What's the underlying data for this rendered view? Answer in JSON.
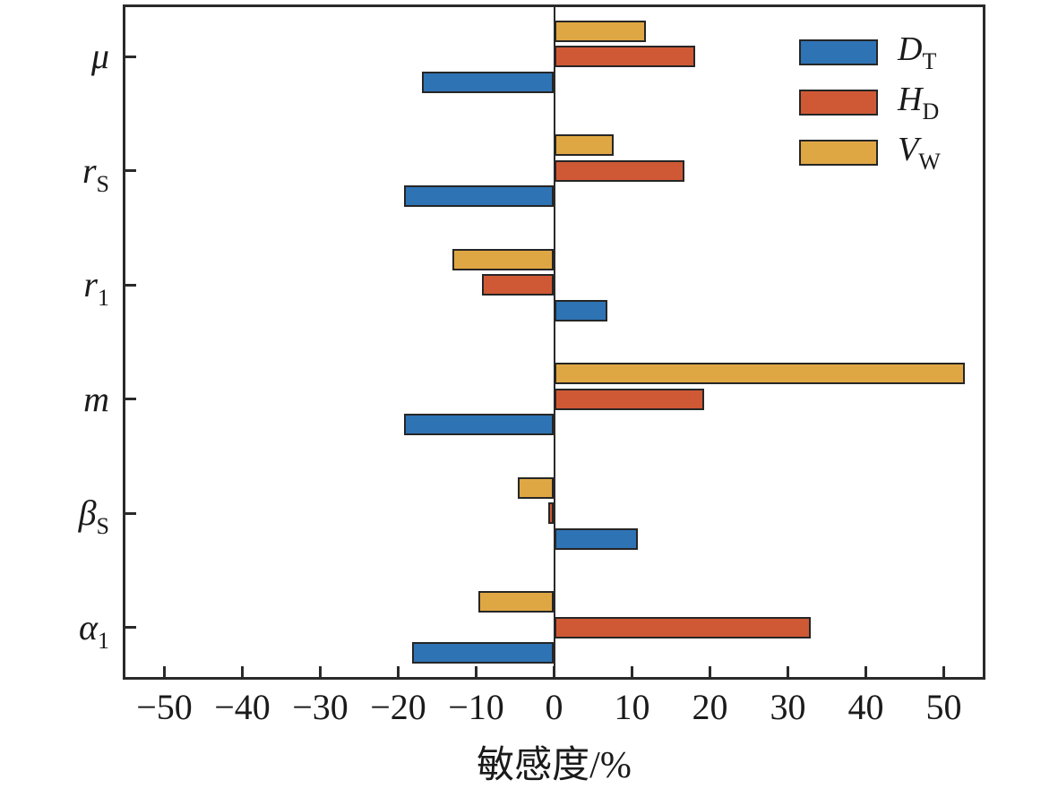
{
  "chart_data": {
    "type": "bar",
    "orientation": "horizontal",
    "title": "",
    "xlabel": "敏感度/%",
    "ylabel": "",
    "xlim": [
      -55,
      55
    ],
    "grid": false,
    "legend_position": "top-right-inside",
    "axis_color": "#2a2a2a",
    "bar_border_color": "#262626",
    "x_ticks": [
      {
        "value": -50,
        "label": "−50"
      },
      {
        "value": -40,
        "label": "−40"
      },
      {
        "value": -30,
        "label": "−30"
      },
      {
        "value": -20,
        "label": "−20"
      },
      {
        "value": -10,
        "label": "−10"
      },
      {
        "value": 0,
        "label": "0"
      },
      {
        "value": 10,
        "label": "10"
      },
      {
        "value": 20,
        "label": "20"
      },
      {
        "value": 30,
        "label": "30"
      },
      {
        "value": 40,
        "label": "40"
      },
      {
        "value": 50,
        "label": "50"
      }
    ],
    "categories": [
      {
        "main": "μ",
        "sub": ""
      },
      {
        "main": "r",
        "sub": "S"
      },
      {
        "main": "r",
        "sub": "1"
      },
      {
        "main": "m",
        "sub": ""
      },
      {
        "main": "β",
        "sub": "S"
      },
      {
        "main": "α",
        "sub": "1"
      }
    ],
    "bar_order_top_to_bottom": [
      "V_W",
      "H_D",
      "D_T"
    ],
    "series": [
      {
        "id": "D_T",
        "name_main": "D",
        "name_sub": "T",
        "color": "#2e73b4",
        "values": [
          -17.0,
          -19.3,
          6.8,
          -19.2,
          10.7,
          -18.2
        ]
      },
      {
        "id": "H_D",
        "name_main": "H",
        "name_sub": "D",
        "color": "#cf5935",
        "values": [
          18.1,
          16.7,
          -9.3,
          19.3,
          -0.7,
          32.9
        ]
      },
      {
        "id": "V_W",
        "name_main": "V",
        "name_sub": "W",
        "color": "#dfa743",
        "values": [
          11.8,
          7.7,
          -13.1,
          52.7,
          -4.7,
          -9.7
        ]
      }
    ]
  }
}
